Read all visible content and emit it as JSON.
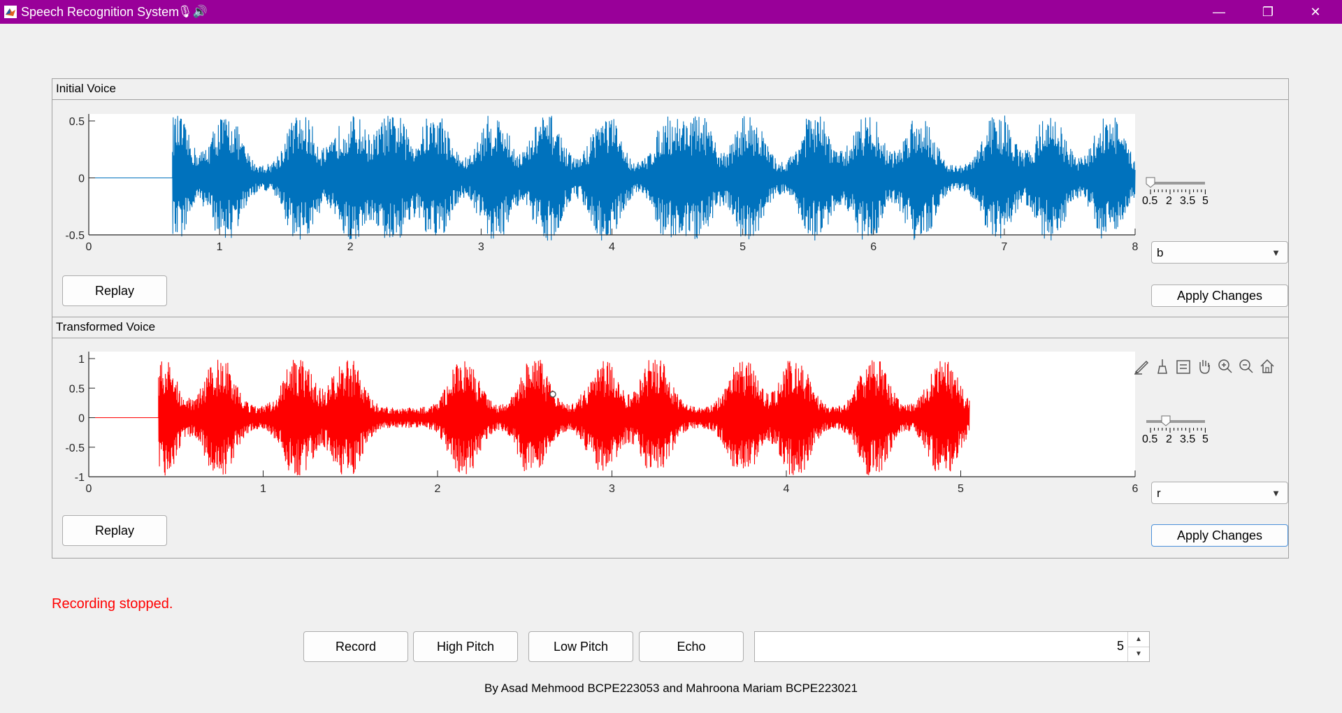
{
  "window": {
    "title": "Speech Recognition System",
    "title_emoji": "🎙🔊",
    "minimize_icon": "—",
    "maximize_icon": "❐",
    "close_icon": "✕",
    "title_color": "#990099"
  },
  "panels": {
    "initial": {
      "title": "Initial Voice",
      "replay_label": "Replay",
      "dropdown_value": "b",
      "apply_label": "Apply Changes",
      "slider_ticks": [
        "0.5",
        "2",
        "3.5",
        "5"
      ],
      "slider_value": 0.5
    },
    "transformed": {
      "title": "Transformed Voice",
      "replay_label": "Replay",
      "dropdown_value": "r",
      "apply_label": "Apply Changes",
      "slider_ticks": [
        "0.5",
        "2",
        "3.5",
        "5"
      ],
      "slider_value": 2
    }
  },
  "status": "Recording stopped.",
  "buttons": {
    "record": "Record",
    "high_pitch": "High Pitch",
    "low_pitch": "Low Pitch",
    "echo": "Echo"
  },
  "duration_value": "5",
  "footer": "By Asad Mehmood BCPE223053 and Mahroona Mariam BCPE223021",
  "axes_toolbar_icons": [
    "brush-icon",
    "data-tip-icon",
    "restore-icon",
    "pan-icon",
    "zoom-in-icon",
    "zoom-out-icon",
    "home-icon"
  ],
  "chart_data": [
    {
      "type": "line",
      "color": "#0072bd",
      "x_multiplier": "×10",
      "x_multiplier_exp": "4",
      "xlim": [
        0,
        8
      ],
      "ylim": [
        -0.5,
        0.5
      ],
      "xticks": [
        "0",
        "1",
        "2",
        "3",
        "4",
        "5",
        "6",
        "7",
        "8"
      ],
      "yticks": [
        "0.5",
        "0",
        "-0.5"
      ],
      "signal_start": 0.64,
      "signal_end": 8,
      "peak": 0.55,
      "bursts": [
        0.65,
        1.05,
        1.62,
        2.0,
        2.32,
        2.65,
        3.1,
        3.5,
        3.95,
        4.45,
        4.65,
        5.05,
        5.55,
        5.95,
        6.35,
        6.95,
        7.35,
        7.8
      ]
    },
    {
      "type": "line",
      "color": "#ff0000",
      "x_multiplier": "×10",
      "x_multiplier_exp": "4",
      "xlim": [
        0,
        6
      ],
      "ylim": [
        -1,
        1
      ],
      "xticks": [
        "0",
        "1",
        "2",
        "3",
        "4",
        "5",
        "6"
      ],
      "yticks": [
        "1",
        "0.5",
        "0",
        "-0.5",
        "-1"
      ],
      "signal_start": 0.4,
      "signal_end": 5.05,
      "peak": 0.98,
      "bursts": [
        0.42,
        0.75,
        1.2,
        1.48,
        2.15,
        2.55,
        2.95,
        3.25,
        3.75,
        4.05,
        4.5,
        4.9
      ]
    }
  ]
}
